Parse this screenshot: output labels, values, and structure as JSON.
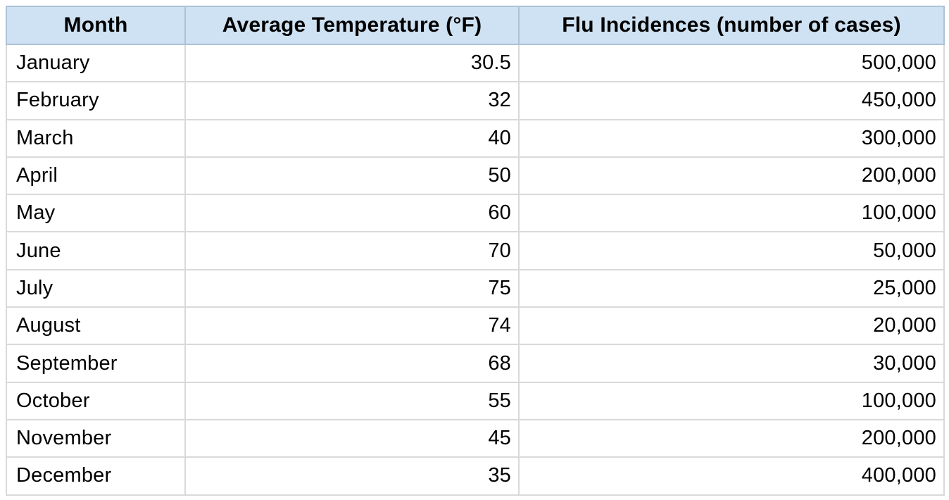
{
  "table": {
    "columns": [
      {
        "key": "month",
        "label": "Month"
      },
      {
        "key": "temp",
        "label": "Average Temperature (°F)"
      },
      {
        "key": "flu",
        "label": "Flu Incidences (number of cases)"
      }
    ],
    "rows": [
      {
        "month": "January",
        "temp": "30.5",
        "flu": "500,000"
      },
      {
        "month": "February",
        "temp": "32",
        "flu": "450,000"
      },
      {
        "month": "March",
        "temp": "40",
        "flu": "300,000"
      },
      {
        "month": "April",
        "temp": "50",
        "flu": "200,000"
      },
      {
        "month": "May",
        "temp": "60",
        "flu": "100,000"
      },
      {
        "month": "June",
        "temp": "70",
        "flu": "50,000"
      },
      {
        "month": "July",
        "temp": "75",
        "flu": "25,000"
      },
      {
        "month": "August",
        "temp": "74",
        "flu": "20,000"
      },
      {
        "month": "September",
        "temp": "68",
        "flu": "30,000"
      },
      {
        "month": "October",
        "temp": "55",
        "flu": "100,000"
      },
      {
        "month": "November",
        "temp": "45",
        "flu": "200,000"
      },
      {
        "month": "December",
        "temp": "35",
        "flu": "400,000"
      }
    ]
  },
  "colors": {
    "header_bg": "#cfe2f3",
    "header_border": "#aec2d5",
    "body_border": "#d9d9d9",
    "text": "#000000",
    "page_bg": "#ffffff"
  },
  "chart_data": {
    "type": "table",
    "title": "",
    "columns": [
      "Month",
      "Average Temperature (°F)",
      "Flu Incidences (number of cases)"
    ],
    "rows": [
      [
        "January",
        30.5,
        500000
      ],
      [
        "February",
        32,
        450000
      ],
      [
        "March",
        40,
        300000
      ],
      [
        "April",
        50,
        200000
      ],
      [
        "May",
        60,
        100000
      ],
      [
        "June",
        70,
        50000
      ],
      [
        "July",
        75,
        25000
      ],
      [
        "August",
        74,
        20000
      ],
      [
        "September",
        68,
        30000
      ],
      [
        "October",
        55,
        100000
      ],
      [
        "November",
        45,
        200000
      ],
      [
        "December",
        35,
        400000
      ]
    ]
  }
}
